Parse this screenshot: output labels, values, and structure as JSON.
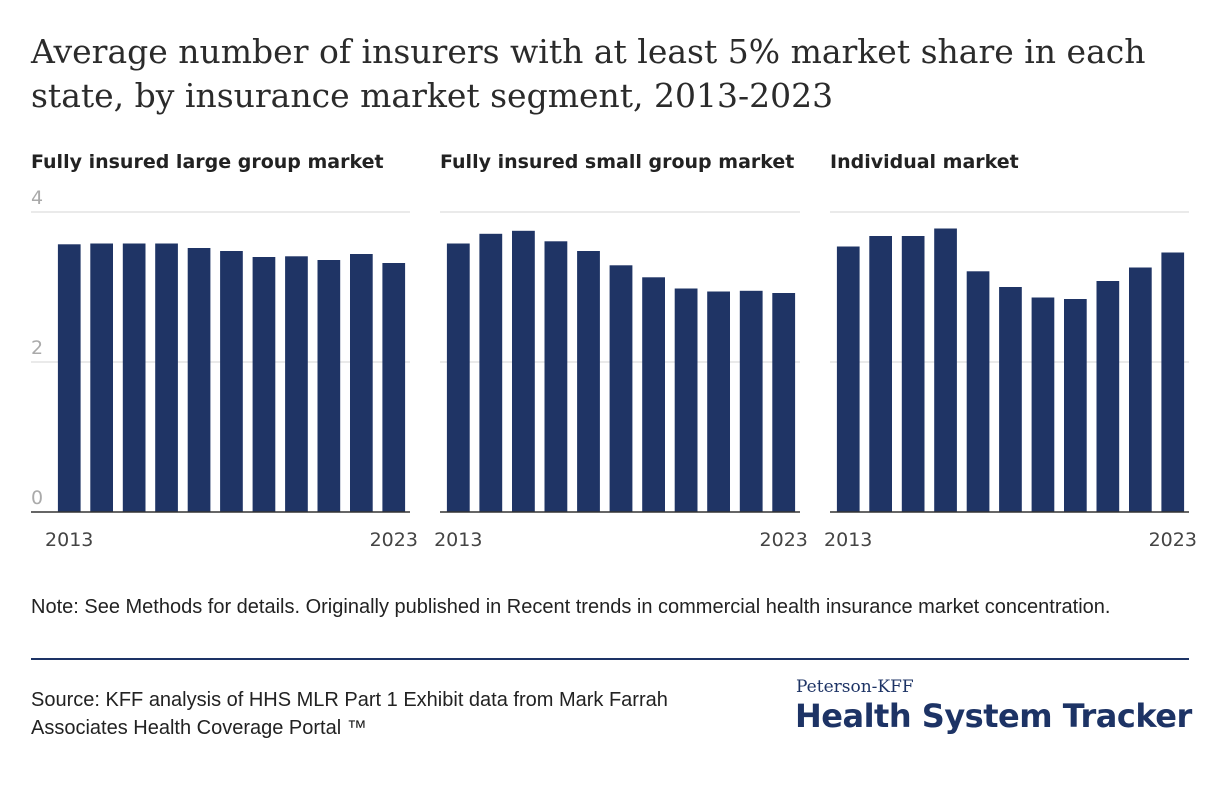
{
  "title": "Average number of insurers with at least 5% market share in each state, by insurance market segment, 2013-2023",
  "note": "Note: See Methods for details. Originally published in Recent trends in commercial health insurance market concentration.",
  "source": "Source: KFF analysis of HHS MLR Part 1 Exhibit data from Mark Farrah Associates Health Coverage Portal ™",
  "brand": {
    "top": "Peterson-KFF",
    "main": "Health System Tracker"
  },
  "colors": {
    "bar": "#1f3465",
    "grid": "#dddddd",
    "axis": "#333333",
    "brand": "#1d3365"
  },
  "chart_data": [
    {
      "type": "bar",
      "title": "Fully insured large group market",
      "categories": [
        "2013",
        "2014",
        "2015",
        "2016",
        "2017",
        "2018",
        "2019",
        "2020",
        "2021",
        "2022",
        "2023"
      ],
      "values": [
        3.57,
        3.58,
        3.58,
        3.58,
        3.52,
        3.48,
        3.4,
        3.41,
        3.36,
        3.44,
        3.32
      ],
      "xtick_labels": [
        "2013",
        "2023"
      ],
      "yticks": [
        "0",
        "2",
        "4"
      ],
      "ylim": [
        0,
        4
      ],
      "xlabel": "",
      "ylabel": ""
    },
    {
      "type": "bar",
      "title": "Fully insured small group market",
      "categories": [
        "2013",
        "2014",
        "2015",
        "2016",
        "2017",
        "2018",
        "2019",
        "2020",
        "2021",
        "2022",
        "2023"
      ],
      "values": [
        3.58,
        3.71,
        3.75,
        3.61,
        3.48,
        3.29,
        3.13,
        2.98,
        2.94,
        2.95,
        2.92
      ],
      "xtick_labels": [
        "2013",
        "2023"
      ],
      "yticks": [],
      "ylim": [
        0,
        4
      ],
      "xlabel": "",
      "ylabel": ""
    },
    {
      "type": "bar",
      "title": "Individual market",
      "categories": [
        "2013",
        "2014",
        "2015",
        "2016",
        "2017",
        "2018",
        "2019",
        "2020",
        "2021",
        "2022",
        "2023"
      ],
      "values": [
        3.54,
        3.68,
        3.68,
        3.78,
        3.21,
        3.0,
        2.86,
        2.84,
        3.08,
        3.26,
        3.46
      ],
      "xtick_labels": [
        "2013",
        "2023"
      ],
      "yticks": [],
      "ylim": [
        0,
        4
      ],
      "xlabel": "",
      "ylabel": ""
    }
  ]
}
